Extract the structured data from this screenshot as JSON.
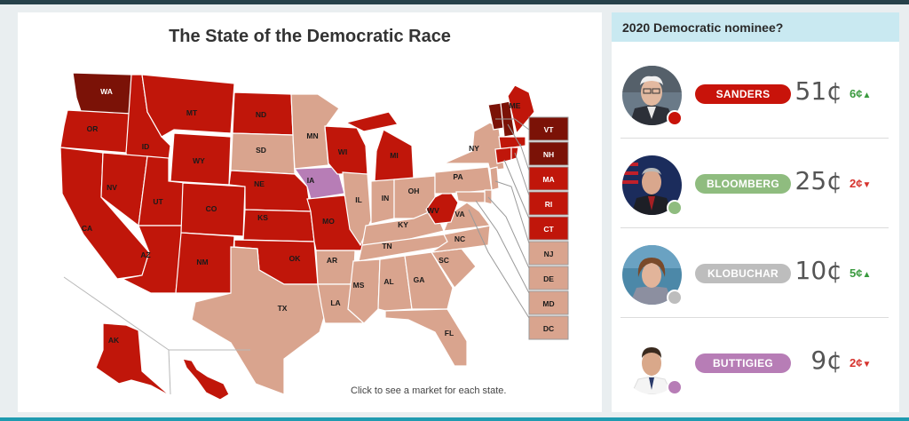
{
  "map": {
    "title": "The State of the Democratic Race",
    "hint": "Click to see a market for each state.",
    "colors": {
      "sanders": "#c0160a",
      "sanders_dark": "#7b1207",
      "other": "#d9a48e",
      "iowa": "#b77db6",
      "box_border": "#9a9a9a"
    },
    "states": [
      "WA",
      "OR",
      "CA",
      "MT",
      "ID",
      "NV",
      "WY",
      "UT",
      "AZ",
      "CO",
      "NM",
      "ND",
      "SD",
      "NE",
      "KS",
      "OK",
      "TX",
      "MN",
      "IA",
      "MO",
      "AR",
      "LA",
      "WI",
      "IL",
      "MI",
      "IN",
      "OH",
      "KY",
      "TN",
      "MS",
      "AL",
      "GA",
      "FL",
      "SC",
      "NC",
      "VA",
      "WV",
      "PA",
      "NY",
      "ME",
      "AK"
    ],
    "side_boxes": [
      "VT",
      "NH",
      "MA",
      "RI",
      "CT",
      "NJ",
      "DE",
      "MD",
      "DC"
    ]
  },
  "sidebar": {
    "title": "2020 Democratic nominee?",
    "currency": "¢",
    "candidates": [
      {
        "name": "SANDERS",
        "price": "51¢",
        "change": "6¢",
        "direction": "up",
        "color": "#c8130a",
        "arrow": "▲"
      },
      {
        "name": "BLOOMBERG",
        "price": "25¢",
        "change": "2¢",
        "direction": "down",
        "color": "#8fbc7f",
        "arrow": "▼"
      },
      {
        "name": "KLOBUCHAR",
        "price": "10¢",
        "change": "5¢",
        "direction": "up",
        "color": "#bdbdbd",
        "arrow": "▲"
      },
      {
        "name": "BUTTIGIEG",
        "price": "9¢",
        "change": "2¢",
        "direction": "down",
        "color": "#b77db6",
        "arrow": "▼"
      }
    ]
  }
}
